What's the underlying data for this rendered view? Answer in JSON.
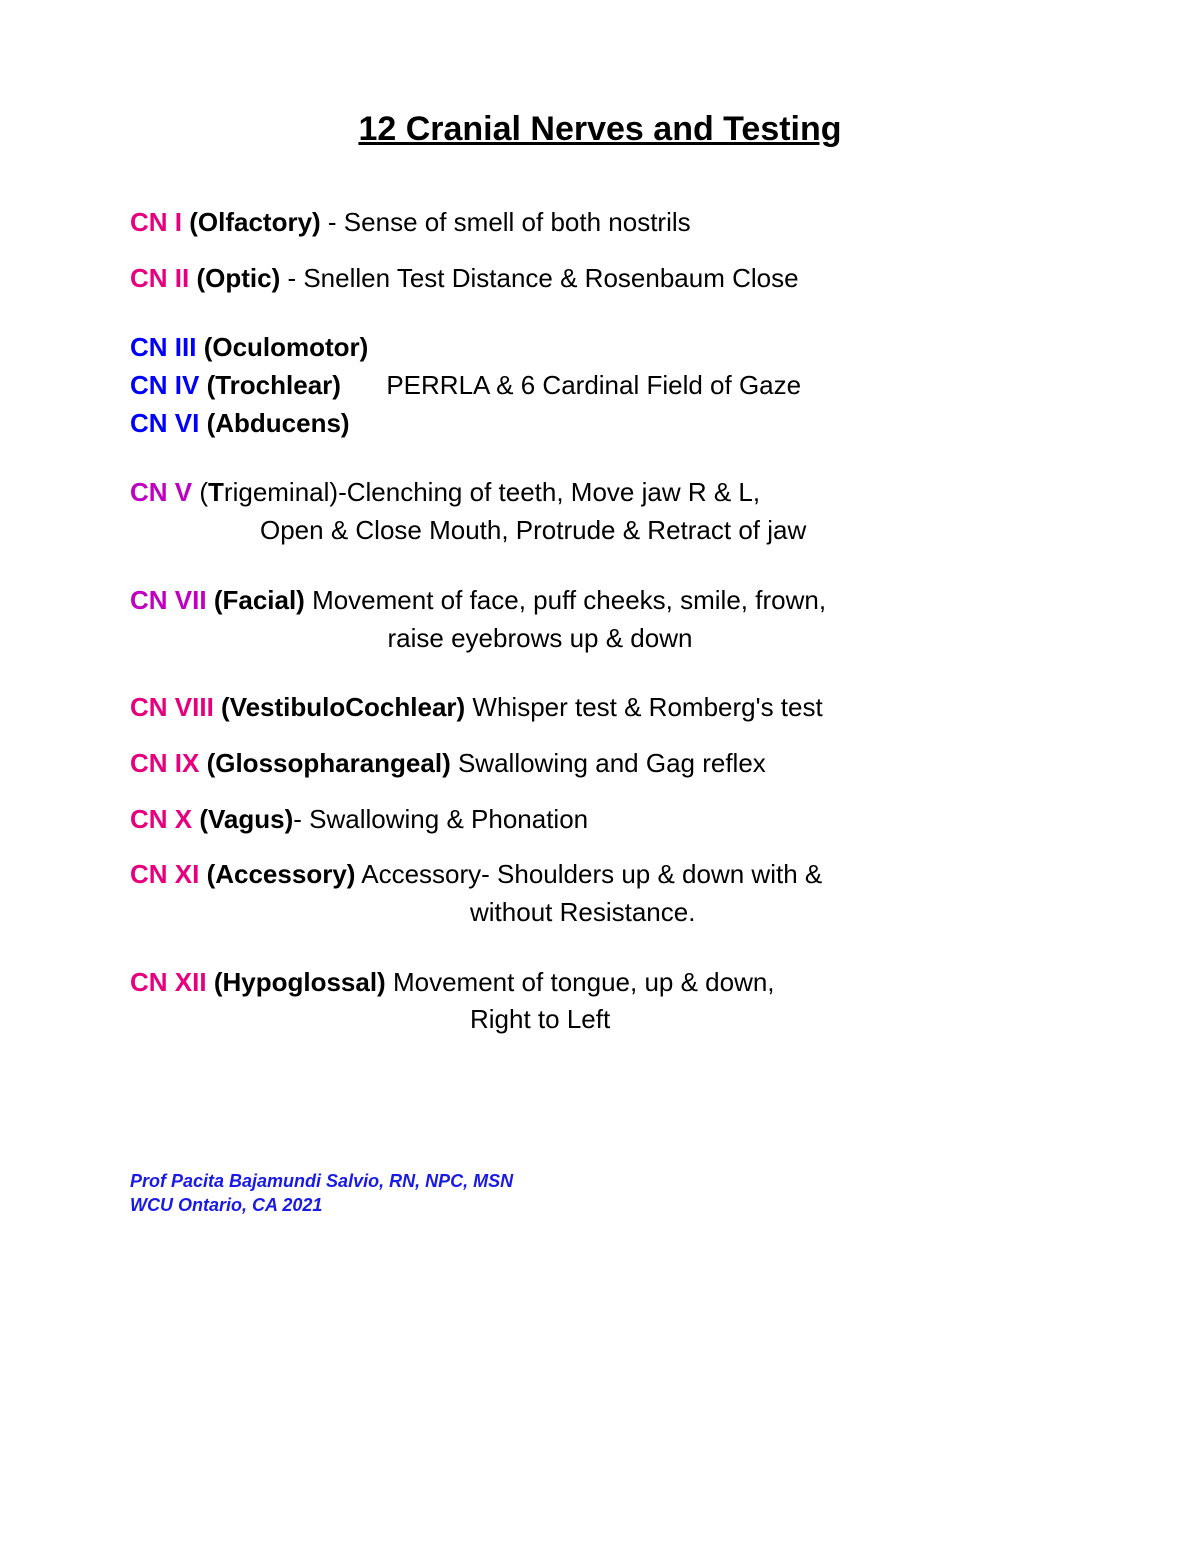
{
  "colors": {
    "pink": "#e6007e",
    "blue": "#0000ff",
    "purple": "#c000c0",
    "black": "#000000",
    "footer": "#1a1ae6"
  },
  "title": "12 Cranial Nerves and Testing",
  "entries": {
    "cn1": {
      "label": "CN I",
      "name": "(Olfactory)",
      "desc": " - Sense of smell of both nostrils"
    },
    "cn2": {
      "label": "CN II",
      "name": "(Optic)",
      "desc": " - Snellen Test Distance & Rosenbaum Close"
    },
    "cn3": {
      "label": "CN III",
      "name": "(Oculomotor)"
    },
    "cn4": {
      "label": "CN IV",
      "name": "(Trochlear)"
    },
    "cn6": {
      "label": "CN VI",
      "name": "(Abducens)"
    },
    "group346_desc": "PERRLA & 6 Cardinal Field of Gaze",
    "cn5": {
      "label": "CN V",
      "name_open": "(",
      "name_first": "T",
      "name_rest": "rigeminal",
      "name_close": ")",
      "desc1": "-Clenching of teeth, Move jaw R & L,",
      "desc2": "Open & Close Mouth, Protrude & Retract of jaw"
    },
    "cn7": {
      "label": "CN VII",
      "name": "(Facial)",
      "desc1": " Movement of face, puff cheeks, smile, frown,",
      "desc2": "raise eyebrows up & down"
    },
    "cn8": {
      "label": "CN VIII",
      "name": "(VestibuloCochlear)",
      "desc": " Whisper test & Romberg's test"
    },
    "cn9": {
      "label": "CN IX",
      "name": "(Glossopharangeal)",
      "desc": " Swallowing and Gag reflex"
    },
    "cn10": {
      "label": "CN X",
      "name": "(Vagus)",
      "desc": "- Swallowing & Phonation"
    },
    "cn11": {
      "label": "CN XI",
      "name": "(Accessory)",
      "desc1": " Accessory- Shoulders up & down with &",
      "desc2": "without Resistance."
    },
    "cn12": {
      "label": "CN XII",
      "name": "(Hypoglossal)",
      "desc1": " Movement of tongue, up & down,",
      "desc2": "Right to Left"
    }
  },
  "footer": {
    "line1": "Prof Pacita Bajamundi Salvio, RN, NPC, MSN",
    "line2": "WCU Ontario, CA 2021"
  }
}
